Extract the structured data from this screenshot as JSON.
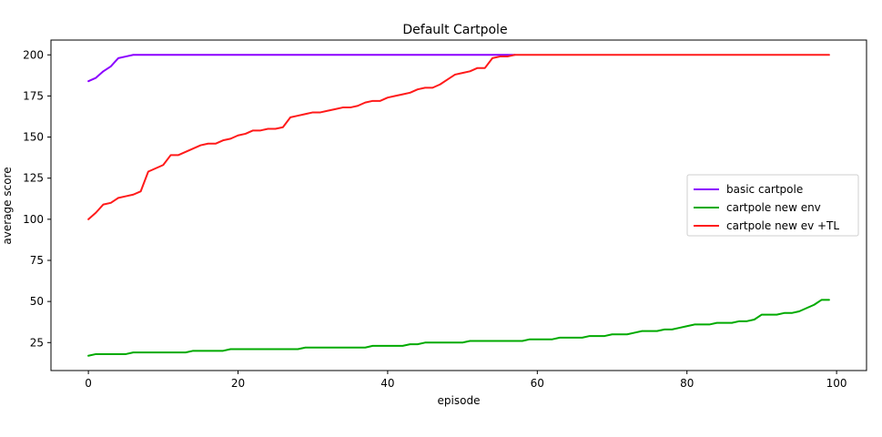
{
  "chart_data": {
    "type": "line",
    "title": "Default Cartpole",
    "xlabel": "episode",
    "ylabel": "average score",
    "xlim": [
      -5,
      104
    ],
    "ylim": [
      8,
      209
    ],
    "xticks": [
      0,
      20,
      40,
      60,
      80,
      100
    ],
    "yticks": [
      25,
      50,
      75,
      100,
      125,
      150,
      175,
      200
    ],
    "grid": false,
    "legend_position": "center-right",
    "series": [
      {
        "name": "basic cartpole",
        "color": "#8b00ff",
        "x": [
          0,
          1,
          2,
          3,
          4,
          5,
          6,
          7,
          8,
          9,
          10,
          11,
          12,
          13,
          14,
          15,
          16,
          17,
          18,
          19,
          20,
          21,
          22,
          23,
          24,
          25,
          26,
          27,
          28,
          29,
          30,
          31,
          32,
          33,
          34,
          35,
          36,
          37,
          38,
          39,
          40,
          41,
          42,
          43,
          44,
          45,
          46,
          47,
          48,
          49,
          50,
          51,
          52,
          53,
          54,
          55,
          56,
          57
        ],
        "values": [
          184,
          186,
          190,
          193,
          198,
          199,
          200,
          200,
          200,
          200,
          200,
          200,
          200,
          200,
          200,
          200,
          200,
          200,
          200,
          200,
          200,
          200,
          200,
          200,
          200,
          200,
          200,
          200,
          200,
          200,
          200,
          200,
          200,
          200,
          200,
          200,
          200,
          200,
          200,
          200,
          200,
          200,
          200,
          200,
          200,
          200,
          200,
          200,
          200,
          200,
          200,
          200,
          200,
          200,
          200,
          200,
          200,
          200
        ]
      },
      {
        "name": "cartpole new env",
        "color": "#00aa00",
        "x": [
          0,
          1,
          2,
          3,
          4,
          5,
          6,
          7,
          8,
          9,
          10,
          11,
          12,
          13,
          14,
          15,
          16,
          17,
          18,
          19,
          20,
          21,
          22,
          23,
          24,
          25,
          26,
          27,
          28,
          29,
          30,
          31,
          32,
          33,
          34,
          35,
          36,
          37,
          38,
          39,
          40,
          41,
          42,
          43,
          44,
          45,
          46,
          47,
          48,
          49,
          50,
          51,
          52,
          53,
          54,
          55,
          56,
          57,
          58,
          59,
          60,
          61,
          62,
          63,
          64,
          65,
          66,
          67,
          68,
          69,
          70,
          71,
          72,
          73,
          74,
          75,
          76,
          77,
          78,
          79,
          80,
          81,
          82,
          83,
          84,
          85,
          86,
          87,
          88,
          89,
          90,
          91,
          92,
          93,
          94,
          95,
          96,
          97,
          98,
          99
        ],
        "values": [
          17,
          18,
          18,
          18,
          18,
          18,
          19,
          19,
          19,
          19,
          19,
          19,
          19,
          19,
          20,
          20,
          20,
          20,
          20,
          21,
          21,
          21,
          21,
          21,
          21,
          21,
          21,
          21,
          21,
          22,
          22,
          22,
          22,
          22,
          22,
          22,
          22,
          22,
          23,
          23,
          23,
          23,
          23,
          24,
          24,
          25,
          25,
          25,
          25,
          25,
          25,
          26,
          26,
          26,
          26,
          26,
          26,
          26,
          26,
          27,
          27,
          27,
          27,
          28,
          28,
          28,
          28,
          29,
          29,
          29,
          30,
          30,
          30,
          31,
          32,
          32,
          32,
          33,
          33,
          34,
          35,
          36,
          36,
          36,
          37,
          37,
          37,
          38,
          38,
          39,
          42,
          42,
          42,
          43,
          43,
          44,
          46,
          48,
          51,
          51
        ]
      },
      {
        "name": "cartpole new ev +TL",
        "color": "#ff1a1a",
        "x": [
          0,
          1,
          2,
          3,
          4,
          5,
          6,
          7,
          8,
          9,
          10,
          11,
          12,
          13,
          14,
          15,
          16,
          17,
          18,
          19,
          20,
          21,
          22,
          23,
          24,
          25,
          26,
          27,
          28,
          29,
          30,
          31,
          32,
          33,
          34,
          35,
          36,
          37,
          38,
          39,
          40,
          41,
          42,
          43,
          44,
          45,
          46,
          47,
          48,
          49,
          50,
          51,
          52,
          53,
          54,
          55,
          56,
          57,
          58,
          59,
          60,
          61,
          62,
          63,
          64,
          65,
          66,
          67,
          68,
          69,
          70,
          71,
          72,
          73,
          74,
          75,
          76,
          77,
          78,
          79,
          80,
          81,
          82,
          83,
          84,
          85,
          86,
          87,
          88,
          89,
          90,
          91,
          92,
          93,
          94,
          95,
          96,
          97,
          98,
          99
        ],
        "values": [
          100,
          104,
          109,
          110,
          113,
          114,
          115,
          117,
          129,
          131,
          133,
          139,
          139,
          141,
          143,
          145,
          146,
          146,
          148,
          149,
          151,
          152,
          154,
          154,
          155,
          155,
          156,
          162,
          163,
          164,
          165,
          165,
          166,
          167,
          168,
          168,
          169,
          171,
          172,
          172,
          174,
          175,
          176,
          177,
          179,
          180,
          180,
          182,
          185,
          188,
          189,
          190,
          192,
          192,
          198,
          199,
          199,
          200,
          200,
          200,
          200,
          200,
          200,
          200,
          200,
          200,
          200,
          200,
          200,
          200,
          200,
          200,
          200,
          200,
          200,
          200,
          200,
          200,
          200,
          200,
          200,
          200,
          200,
          200,
          200,
          200,
          200,
          200,
          200,
          200,
          200,
          200,
          200,
          200,
          200,
          200,
          200,
          200,
          200,
          200
        ]
      }
    ]
  }
}
